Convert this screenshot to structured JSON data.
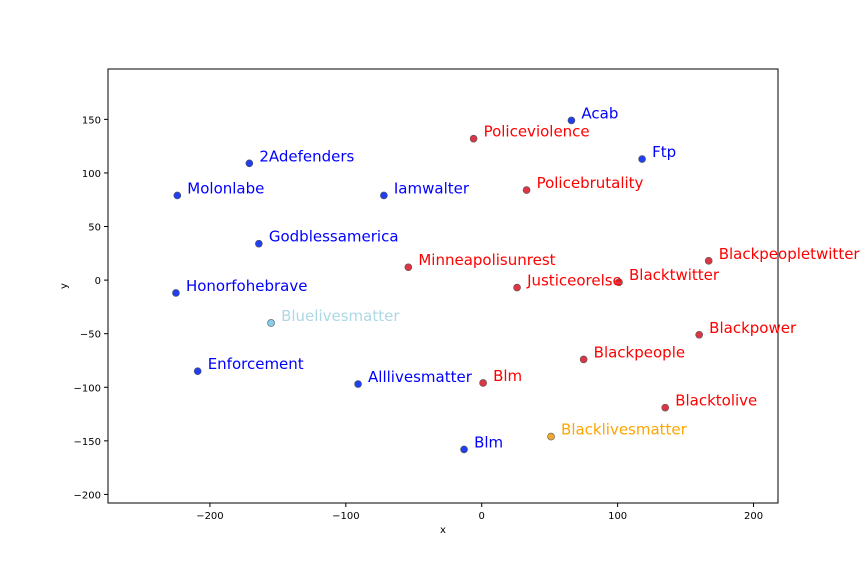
{
  "chart_data": {
    "type": "scatter",
    "title": "",
    "xlabel": "x",
    "ylabel": "y",
    "xlim": [
      -275,
      218
    ],
    "ylim": [
      -208,
      197
    ],
    "xticks": [
      -200,
      -100,
      0,
      100,
      200
    ],
    "yticks": [
      -200,
      -150,
      -100,
      -50,
      0,
      50,
      100,
      150
    ],
    "grid": false,
    "colors": {
      "blue_point": "#1f3ff0",
      "blue_label": "#0000ff",
      "red_point": "#dc3545",
      "red_label": "#ff0000",
      "lightblue_point": "#87ceeb",
      "lightblue_label": "#add8e6",
      "orange_point": "#f0a830",
      "orange_label": "#ffa500"
    },
    "points": [
      {
        "label": "Acab",
        "x": 66,
        "y": 149,
        "group": "blue"
      },
      {
        "label": "Ftp",
        "x": 118,
        "y": 113,
        "group": "blue"
      },
      {
        "label": "2Adefenders",
        "x": -171,
        "y": 109,
        "group": "blue"
      },
      {
        "label": "Molonlabe",
        "x": -224,
        "y": 79,
        "group": "blue"
      },
      {
        "label": "Iamwalter",
        "x": -72,
        "y": 79,
        "group": "blue"
      },
      {
        "label": "Godblessamerica",
        "x": -164,
        "y": 34,
        "group": "blue"
      },
      {
        "label": "Honorfohebrave",
        "x": -225,
        "y": -12,
        "group": "blue"
      },
      {
        "label": "Enforcement",
        "x": -209,
        "y": -85,
        "group": "blue"
      },
      {
        "label": "Alllivesmatter",
        "x": -91,
        "y": -97,
        "group": "blue"
      },
      {
        "label": "Blm",
        "x": -13,
        "y": -158,
        "group": "blue"
      },
      {
        "label": "Bluelivesmatter",
        "x": -155,
        "y": -40,
        "group": "lightblue"
      },
      {
        "label": "Policeviolence",
        "x": -6,
        "y": 132,
        "group": "red"
      },
      {
        "label": "Policebrutality",
        "x": 33,
        "y": 84,
        "group": "red"
      },
      {
        "label": "Minneapolisunrest",
        "x": -54,
        "y": 12,
        "group": "red"
      },
      {
        "label": "Justiceorelse",
        "x": 26,
        "y": -7,
        "group": "red"
      },
      {
        "label": "Blacktwitter",
        "x": 101,
        "y": -2,
        "group": "red"
      },
      {
        "label": "Blackpeopletwitter",
        "x": 167,
        "y": 18,
        "group": "red"
      },
      {
        "label": "Blackpower",
        "x": 160,
        "y": -51,
        "group": "red"
      },
      {
        "label": "Blackpeople",
        "x": 75,
        "y": -74,
        "group": "red"
      },
      {
        "label": "Blm",
        "x": 1,
        "y": -96,
        "group": "red"
      },
      {
        "label": "Blacktolive",
        "x": 135,
        "y": -119,
        "group": "red"
      },
      {
        "label": "Blacklivesmatter",
        "x": 51,
        "y": -146,
        "group": "orange"
      }
    ]
  }
}
